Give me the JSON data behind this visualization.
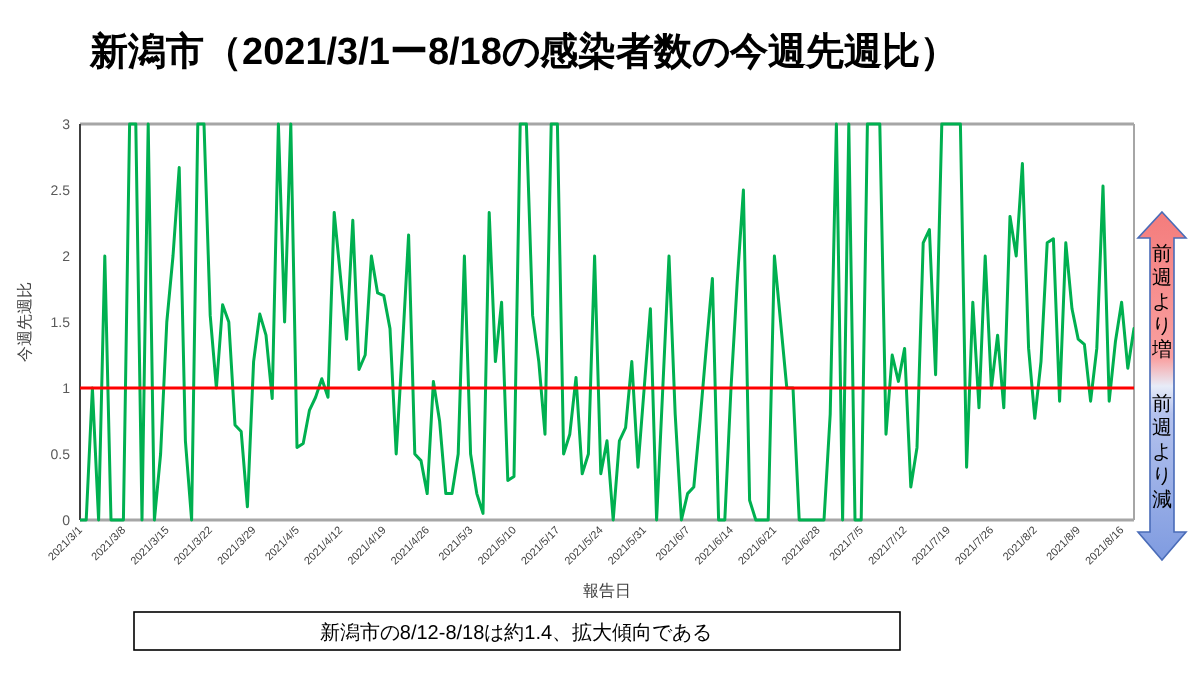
{
  "chart_data": {
    "type": "line",
    "title": "新潟市（2021/3/1ー8/18の感染者数の今週先週比）",
    "xlabel": "報告日",
    "ylabel": "今週先週比",
    "categories": [
      "2021/3/1",
      null,
      null,
      null,
      null,
      null,
      null,
      "2021/3/8",
      null,
      null,
      null,
      null,
      null,
      null,
      "2021/3/15",
      null,
      null,
      null,
      null,
      null,
      null,
      "2021/3/22",
      null,
      null,
      null,
      null,
      null,
      null,
      "2021/3/29",
      null,
      null,
      null,
      null,
      null,
      null,
      "2021/4/5",
      null,
      null,
      null,
      null,
      null,
      null,
      "2021/4/12",
      null,
      null,
      null,
      null,
      null,
      null,
      "2021/4/19",
      null,
      null,
      null,
      null,
      null,
      null,
      "2021/4/26",
      null,
      null,
      null,
      null,
      null,
      null,
      "2021/5/3",
      null,
      null,
      null,
      null,
      null,
      null,
      "2021/5/10",
      null,
      null,
      null,
      null,
      null,
      null,
      "2021/5/17",
      null,
      null,
      null,
      null,
      null,
      null,
      "2021/5/24",
      null,
      null,
      null,
      null,
      null,
      null,
      "2021/5/31",
      null,
      null,
      null,
      null,
      null,
      null,
      "2021/6/7",
      null,
      null,
      null,
      null,
      null,
      null,
      "2021/6/14",
      null,
      null,
      null,
      null,
      null,
      null,
      "2021/6/21",
      null,
      null,
      null,
      null,
      null,
      null,
      "2021/6/28",
      null,
      null,
      null,
      null,
      null,
      null,
      "2021/7/5",
      null,
      null,
      null,
      null,
      null,
      null,
      "2021/7/12",
      null,
      null,
      null,
      null,
      null,
      null,
      "2021/7/19",
      null,
      null,
      null,
      null,
      null,
      null,
      "2021/7/26",
      null,
      null,
      null,
      null,
      null,
      null,
      "2021/8/2",
      null,
      null,
      null,
      null,
      null,
      null,
      "2021/8/9",
      null,
      null,
      null,
      null,
      null,
      null,
      "2021/8/16",
      null,
      null
    ],
    "series": [
      {
        "color": "#00b050",
        "values": [
          0,
          0,
          1.0,
          0,
          2.0,
          0,
          0,
          0,
          3,
          3,
          0,
          3,
          0,
          0.5,
          1.5,
          2.0,
          2.67,
          0.6,
          0,
          3,
          3,
          1.55,
          1.0,
          1.63,
          1.5,
          0.72,
          0.67,
          0.1,
          1.2,
          1.56,
          1.4,
          0.92,
          3,
          1.5,
          3,
          0.55,
          0.58,
          0.83,
          0.93,
          1.07,
          0.93,
          2.33,
          1.85,
          1.37,
          2.27,
          1.14,
          1.25,
          2.0,
          1.72,
          1.7,
          1.45,
          0.5,
          1.3,
          2.16,
          0.5,
          0.45,
          0.2,
          1.05,
          0.75,
          0.2,
          0.2,
          0.5,
          2.0,
          0.5,
          0.2,
          0.05,
          2.33,
          1.2,
          1.65,
          0.3,
          0.33,
          3,
          3,
          1.55,
          1.2,
          0.65,
          3,
          3,
          0.5,
          0.65,
          1.08,
          0.35,
          0.5,
          2.0,
          0.35,
          0.6,
          0,
          0.6,
          0.7,
          1.2,
          0.4,
          1.0,
          1.6,
          0,
          1.0,
          2.0,
          0.8,
          0,
          0.2,
          0.25,
          0.75,
          1.3,
          1.83,
          0,
          0,
          1.0,
          1.8,
          2.5,
          0.15,
          0,
          0,
          0,
          2.0,
          1.5,
          1.0,
          1.0,
          0,
          0,
          0,
          0,
          0,
          0.8,
          3,
          0,
          3,
          0,
          0,
          3,
          3,
          3,
          0.65,
          1.25,
          1.05,
          1.3,
          0.25,
          0.55,
          2.1,
          2.2,
          1.1,
          3,
          3,
          3,
          3,
          0.4,
          1.65,
          0.85,
          2.0,
          1.0,
          1.4,
          0.85,
          2.3,
          2.0,
          2.7,
          1.3,
          0.77,
          1.2,
          2.1,
          2.13,
          0.9,
          2.1,
          1.6,
          1.37,
          1.33,
          0.9,
          1.3,
          2.53,
          0.9,
          1.35,
          1.65,
          1.15,
          1.45
        ]
      }
    ],
    "ylim": [
      0,
      3
    ],
    "yticks": [
      0,
      0.5,
      1,
      1.5,
      2,
      2.5,
      3
    ],
    "grid": false,
    "ref_lines": [
      {
        "axis": "y",
        "value": 1,
        "color": "#ff0000"
      }
    ],
    "annotations": [
      "前週より増",
      "前週より減",
      "新潟市の8/12-8/18は約1.4、拡大傾向である"
    ]
  }
}
